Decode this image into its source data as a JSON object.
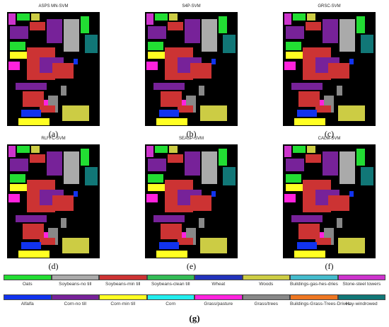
{
  "panels": [
    {
      "title": "ASPS MN-SVM",
      "label": "(a)"
    },
    {
      "title": "S4P-SVM",
      "label": "(b)"
    },
    {
      "title": "GRSC-SVM",
      "label": "(c)"
    },
    {
      "title": "RLFFC-SVM",
      "label": "(d)"
    },
    {
      "title": "SEASP-SVM",
      "label": "(e)"
    },
    {
      "title": "CALM-SVM",
      "label": "(f)"
    }
  ],
  "legend": {
    "row1": [
      {
        "name": "Oats",
        "color": "#22dd33"
      },
      {
        "name": "Soybeans-no till",
        "color": "#aaaaaa"
      },
      {
        "name": "Soybeans-min till",
        "color": "#cc3333"
      },
      {
        "name": "Soybeans-clean till",
        "color": "#33bb55"
      },
      {
        "name": "Wheat",
        "color": "#2233bb"
      },
      {
        "name": "Woods",
        "color": "#cccc44"
      },
      {
        "name": "Buildings-gas-hes-dries",
        "color": "#44bbcc"
      },
      {
        "name": "Stone-steel towers",
        "color": "#cc33cc"
      }
    ],
    "row2": [
      {
        "name": "Alfalfa",
        "color": "#1133ee"
      },
      {
        "name": "Corn-no till",
        "color": "#772299"
      },
      {
        "name": "Corn-min till",
        "color": "#ffff22"
      },
      {
        "name": "Corn",
        "color": "#22eeee"
      },
      {
        "name": "Grass/pasture",
        "color": "#ff22dd"
      },
      {
        "name": "Grass/trees",
        "color": "#888888"
      },
      {
        "name": "Buildings-Grass-Trees-Drives",
        "color": "#ee7722"
      },
      {
        "name": "Hay-windrowed",
        "color": "#117777"
      }
    ]
  },
  "figure_label": "(g)"
}
